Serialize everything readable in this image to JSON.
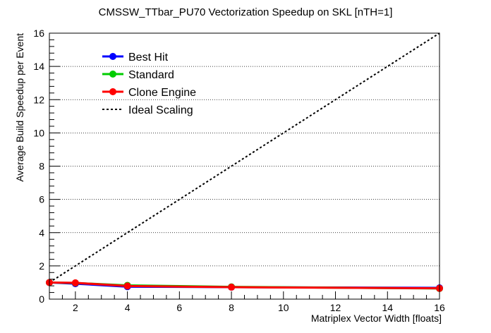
{
  "chart_data": {
    "type": "line",
    "title": "CMSSW_TTbar_PU70 Vectorization Speedup on SKL [nTH=1]",
    "xlabel": "Matriplex Vector Width [floats]",
    "ylabel": "Average Build Speedup per Event",
    "xlim": [
      1,
      16
    ],
    "ylim": [
      0,
      16
    ],
    "x_ticks": [
      2,
      4,
      6,
      8,
      10,
      12,
      14,
      16
    ],
    "y_ticks": [
      0,
      2,
      4,
      6,
      8,
      10,
      12,
      14,
      16
    ],
    "grid": "horizontal dotted",
    "legend_position": "top-left",
    "x": [
      1,
      2,
      4,
      8,
      16
    ],
    "series": [
      {
        "name": "Best Hit",
        "color": "#0000ff",
        "marker": "circle",
        "values": [
          1.0,
          0.93,
          0.75,
          0.72,
          0.68
        ]
      },
      {
        "name": "Standard",
        "color": "#00cc00",
        "marker": "circle",
        "values": [
          1.0,
          0.97,
          0.83,
          0.74,
          0.64
        ]
      },
      {
        "name": "Clone Engine",
        "color": "#ff0000",
        "marker": "circle",
        "values": [
          1.0,
          0.98,
          0.79,
          0.72,
          0.65
        ]
      }
    ],
    "reference_line": {
      "name": "Ideal Scaling",
      "style": "dotted",
      "color": "#000000",
      "x": [
        1,
        16
      ],
      "y": [
        1,
        16
      ]
    }
  }
}
